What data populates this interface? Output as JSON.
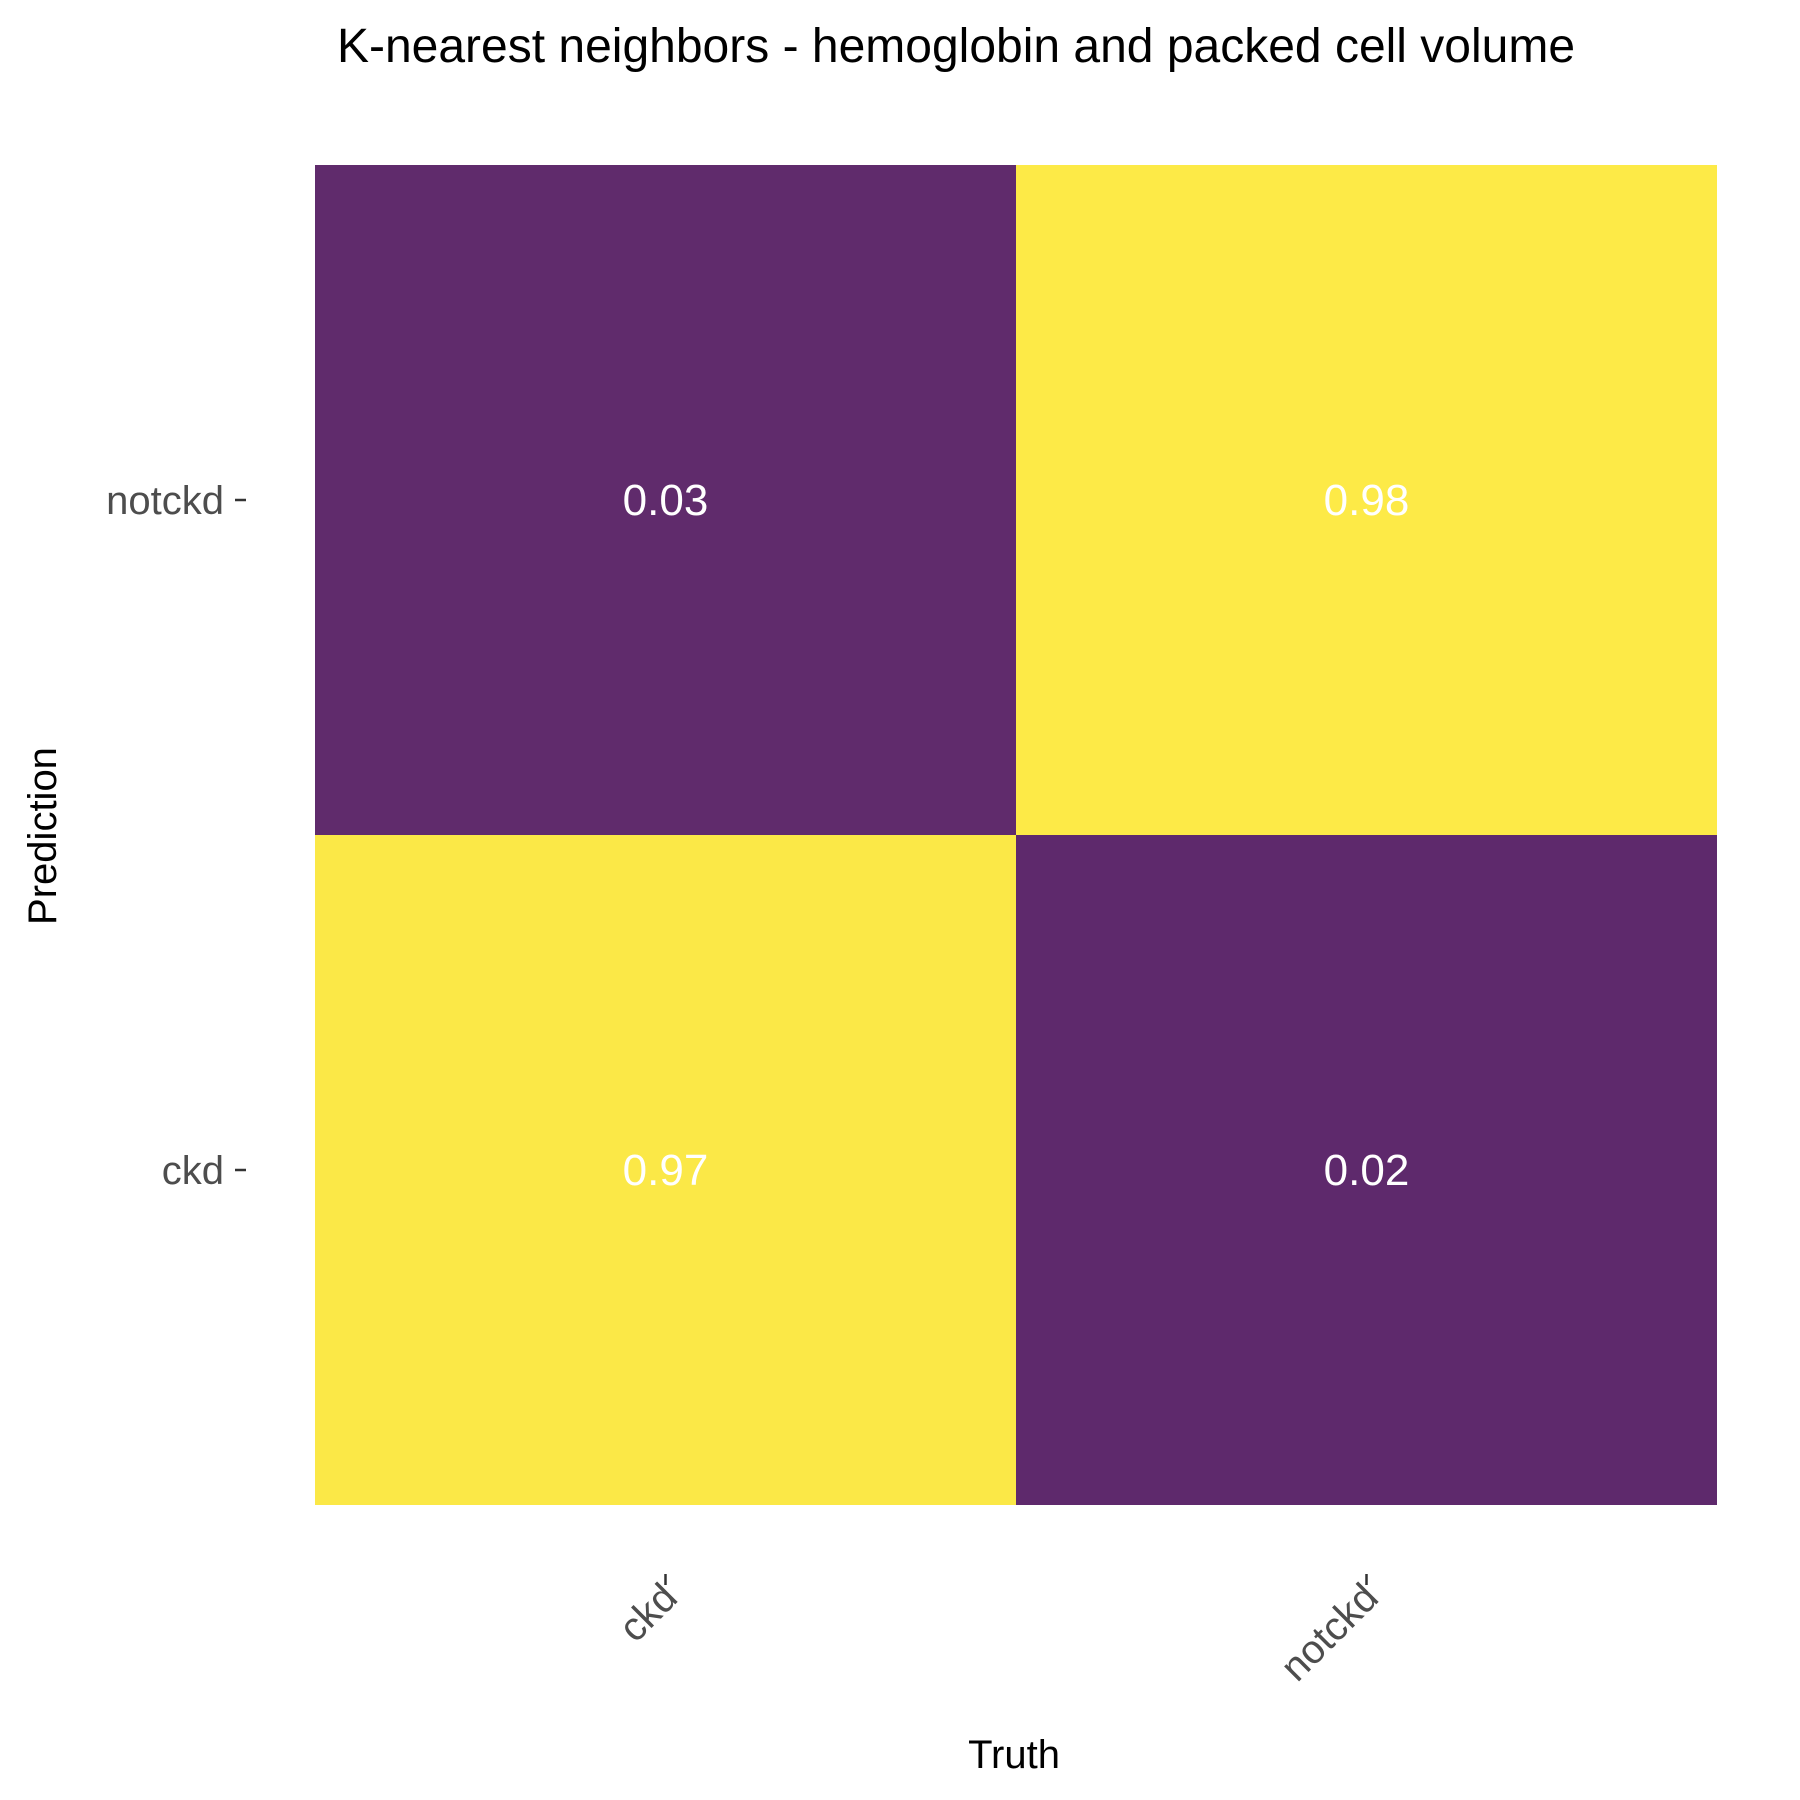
{
  "chart_data": {
    "type": "heatmap",
    "title": "K-nearest neighbors - hemoglobin and packed cell volume",
    "xlabel": "Truth",
    "ylabel": "Prediction",
    "x_categories": [
      "ckd",
      "notckd"
    ],
    "y_categories": [
      "ckd",
      "notckd"
    ],
    "cells": [
      {
        "truth": "ckd",
        "prediction": "notckd",
        "value": 0.03,
        "label": "0.03"
      },
      {
        "truth": "notckd",
        "prediction": "notckd",
        "value": 0.98,
        "label": "0.98"
      },
      {
        "truth": "ckd",
        "prediction": "ckd",
        "value": 0.97,
        "label": "0.97"
      },
      {
        "truth": "notckd",
        "prediction": "ckd",
        "value": 0.02,
        "label": "0.02"
      }
    ],
    "color_scale": {
      "low": "#5e296c",
      "high": "#fdea47"
    },
    "legend": "none",
    "grid": false
  }
}
